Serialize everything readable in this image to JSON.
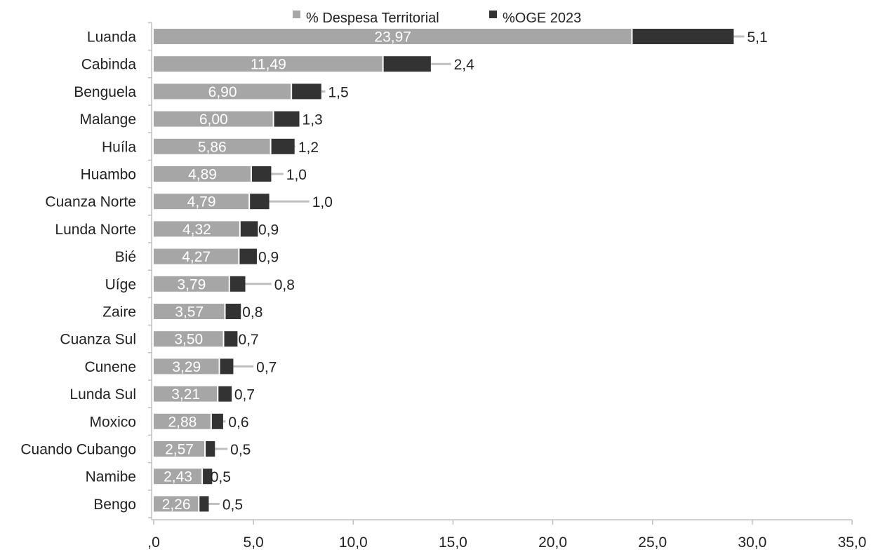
{
  "chart_data": {
    "type": "bar",
    "orientation": "horizontal",
    "stacked": true,
    "categories": [
      "Luanda",
      "Cabinda",
      "Benguela",
      "Malange",
      "Huíla",
      "Huambo",
      "Cuanza Norte",
      "Lunda Norte",
      "Bié",
      "Uíge",
      "Zaire",
      "Cuanza Sul",
      "Cunene",
      "Lunda Sul",
      "Moxico",
      "Cuando Cubango",
      "Namibe",
      "Bengo"
    ],
    "series": [
      {
        "name": "% Despesa Territorial",
        "color": "#a6a6a6",
        "values": [
          23.97,
          11.49,
          6.9,
          6.0,
          5.86,
          4.89,
          4.79,
          4.32,
          4.27,
          3.79,
          3.57,
          3.5,
          3.29,
          3.21,
          2.88,
          2.57,
          2.43,
          2.26
        ],
        "labels": [
          "23,97",
          "11,49",
          "6,90",
          "6,00",
          "5,86",
          "4,89",
          "4,79",
          "4,32",
          "4,27",
          "3,79",
          "3,57",
          "3,50",
          "3,29",
          "3,21",
          "2,88",
          "2,57",
          "2,43",
          "2,26"
        ]
      },
      {
        "name": "%OGE 2023",
        "color": "#333333",
        "values": [
          5.1,
          2.4,
          1.5,
          1.3,
          1.2,
          1.0,
          1.0,
          0.9,
          0.9,
          0.8,
          0.8,
          0.7,
          0.7,
          0.7,
          0.6,
          0.5,
          0.5,
          0.5
        ],
        "labels": [
          "5,1",
          "2,4",
          "1,5",
          "1,3",
          "1,2",
          "1,0",
          "1,0",
          "0,9",
          "0,9",
          "0,8",
          "0,8",
          "0,7",
          "0,7",
          "0,7",
          "0,6",
          "0,5",
          "0,5",
          "0,5"
        ]
      }
    ],
    "leader_line_end": [
      29.6,
      14.9,
      8.6,
      7.3,
      7.1,
      6.5,
      7.8,
      5.1,
      5.1,
      5.9,
      4.3,
      4.1,
      5.0,
      3.9,
      3.6,
      3.7,
      2.7,
      3.3
    ],
    "xlim": [
      0,
      35
    ],
    "xticks": [
      0,
      5,
      10,
      15,
      20,
      25,
      30,
      35
    ],
    "xtick_labels": [
      ",0",
      "5,0",
      "10,0",
      "15,0",
      "20,0",
      "25,0",
      "30,0",
      "35,0"
    ],
    "xlabel": "",
    "ylabel": "",
    "legend_position": "top",
    "grid": false
  }
}
